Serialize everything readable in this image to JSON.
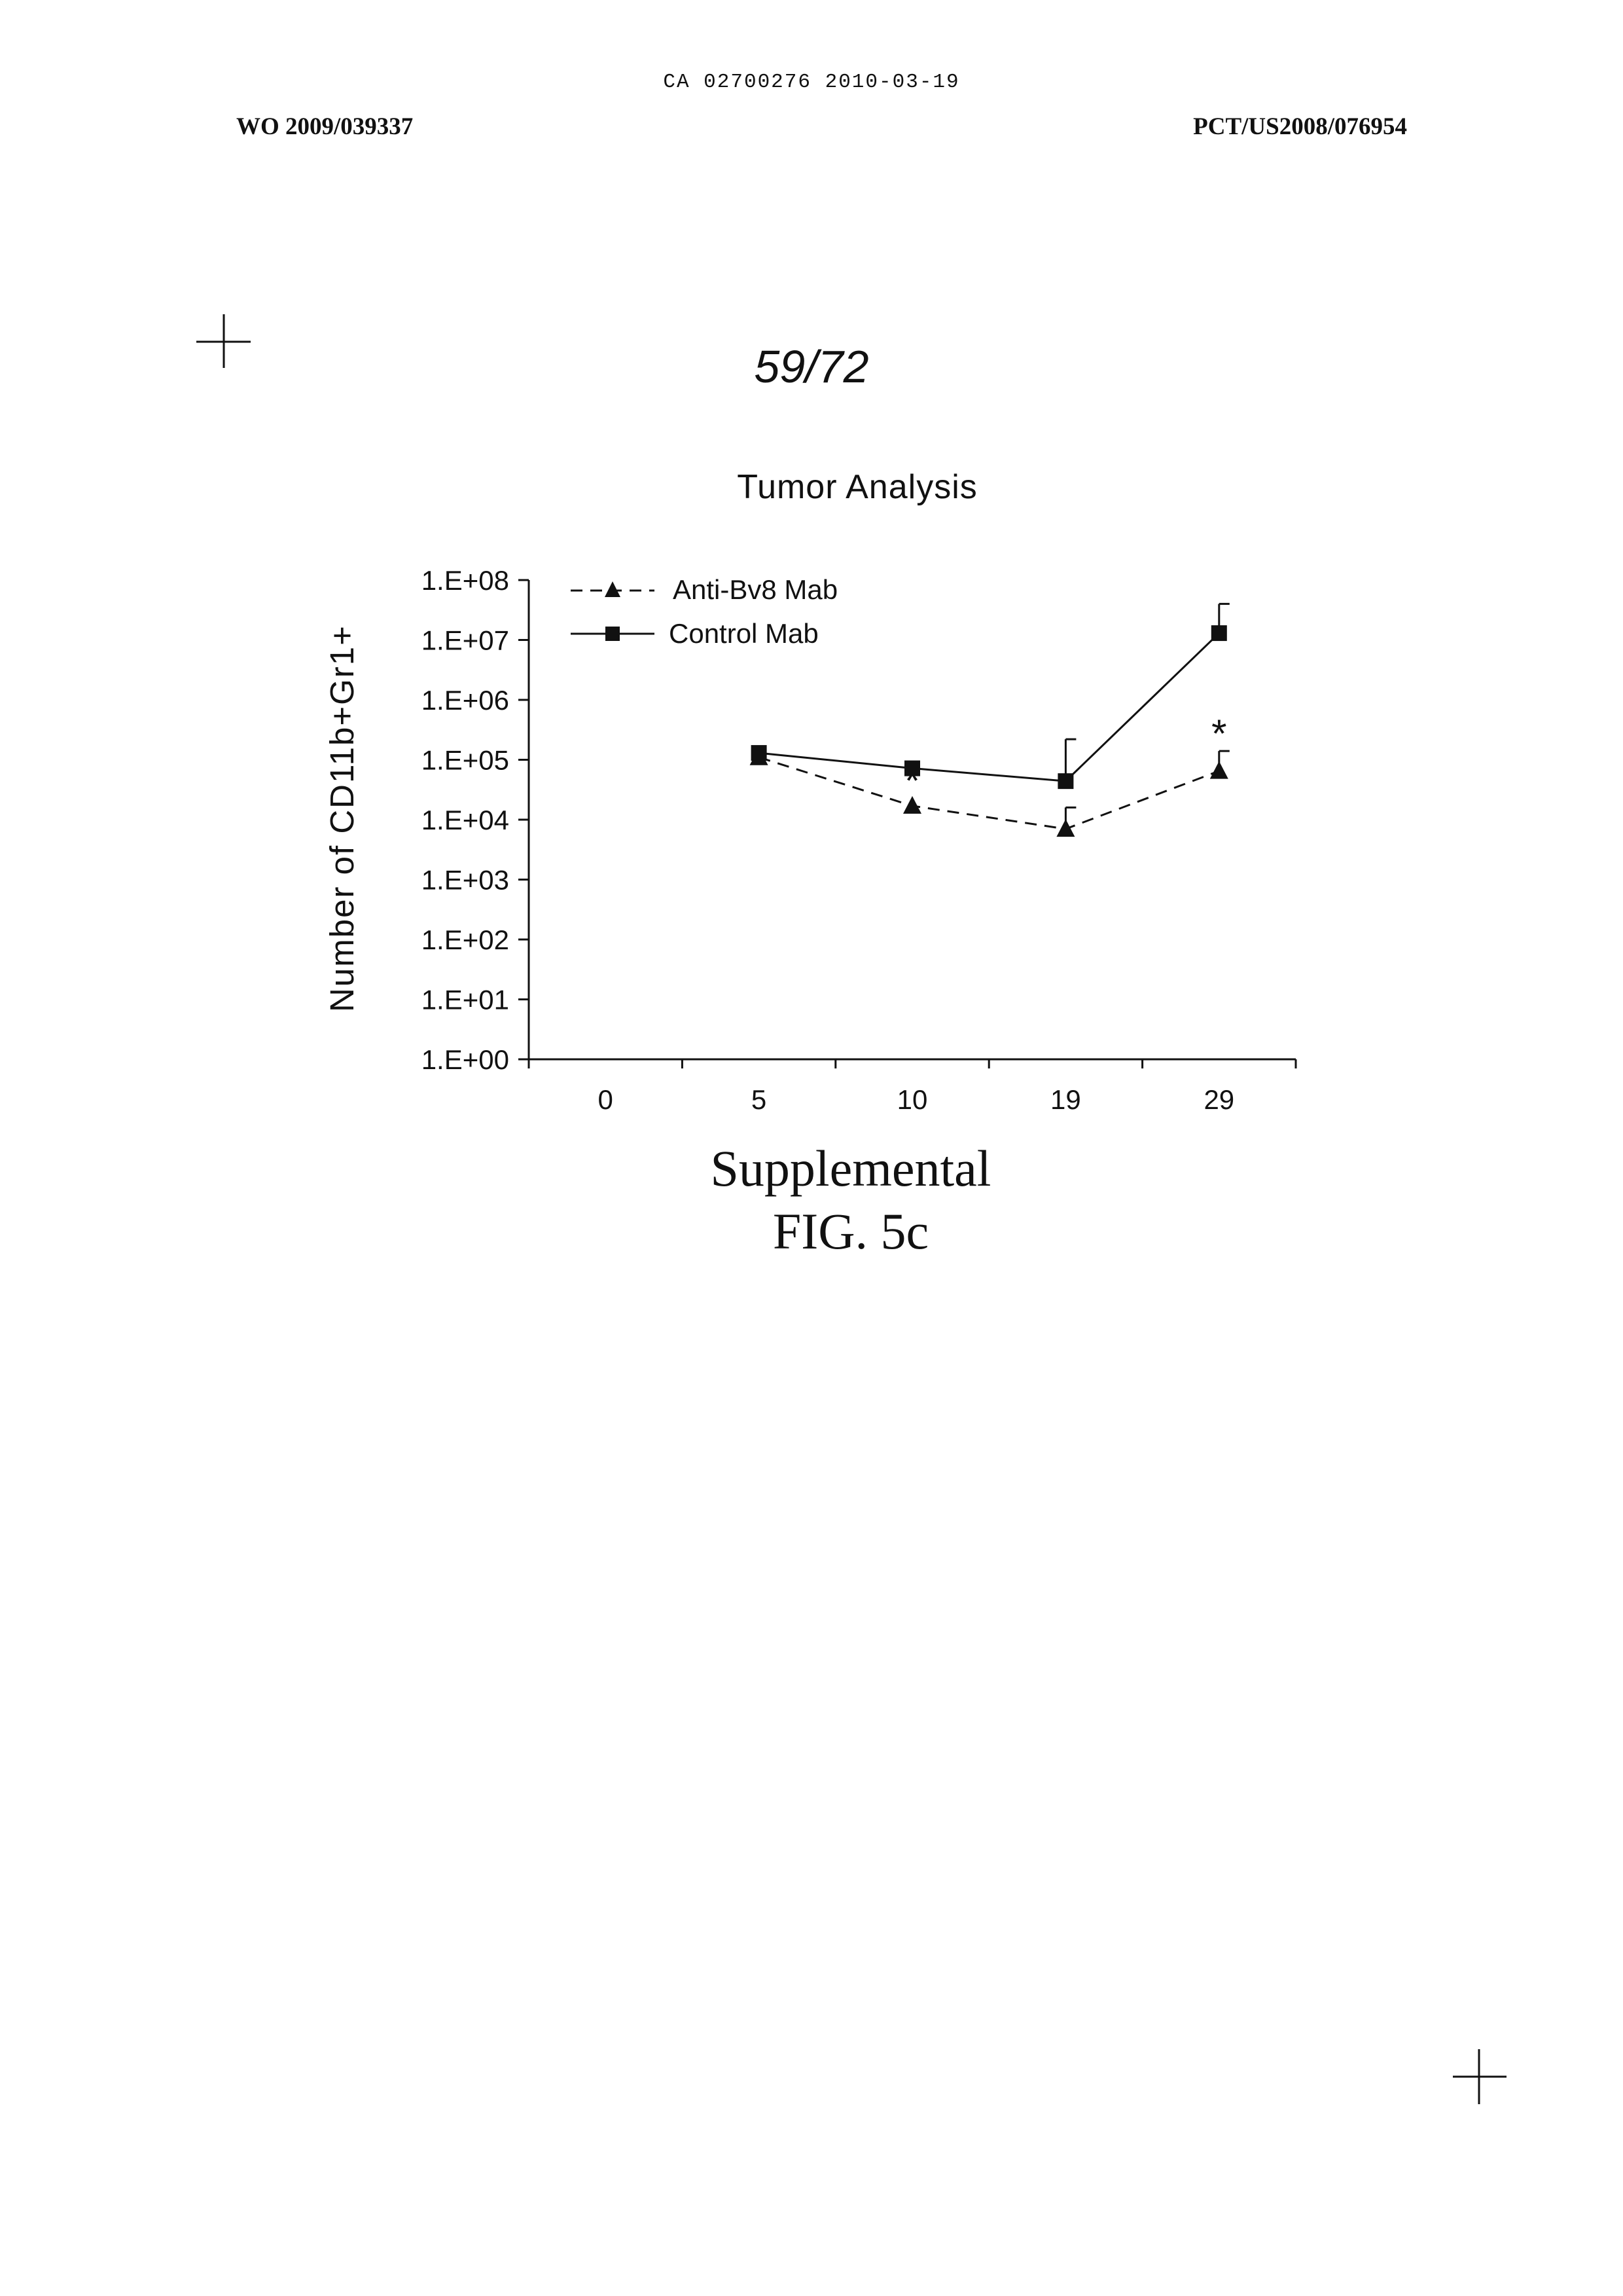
{
  "header": {
    "ca_line": "CA 02700276 2010-03-19",
    "left": "WO 2009/039337",
    "right": "PCT/US2008/076954"
  },
  "page_number": "59/72",
  "caption": {
    "line1": "Supplemental",
    "line2": "FIG. 5c"
  },
  "chart_data": {
    "type": "line",
    "title": "Tumor Analysis",
    "xlabel": "",
    "ylabel": "Number of CD11b+Gr1+",
    "categories": [
      "0",
      "5",
      "10",
      "19",
      "29"
    ],
    "y_scale": "log",
    "ylim": [
      1,
      100000000
    ],
    "y_ticks": [
      {
        "value": 1,
        "label": "1.E+00"
      },
      {
        "value": 10,
        "label": "1.E+01"
      },
      {
        "value": 100,
        "label": "1.E+02"
      },
      {
        "value": 1000,
        "label": "1.E+03"
      },
      {
        "value": 10000,
        "label": "1.E+04"
      },
      {
        "value": 100000,
        "label": "1.E+05"
      },
      {
        "value": 1000000,
        "label": "1.E+06"
      },
      {
        "value": 10000000,
        "label": "1.E+07"
      },
      {
        "value": 100000000,
        "label": "1.E+08"
      }
    ],
    "series": [
      {
        "name": "Anti-Bv8 Mab",
        "style": "dashed",
        "marker": "triangle",
        "points": [
          {
            "x": "5",
            "y": 110000
          },
          {
            "x": "10",
            "y": 17000,
            "significant": true
          },
          {
            "x": "19",
            "y": 7000,
            "error_upper": 16000
          },
          {
            "x": "29",
            "y": 65000,
            "error_upper": 140000,
            "significant": true
          }
        ]
      },
      {
        "name": "Control Mab",
        "style": "solid",
        "marker": "square",
        "points": [
          {
            "x": "5",
            "y": 130000
          },
          {
            "x": "10",
            "y": 72000
          },
          {
            "x": "19",
            "y": 44000,
            "error_upper": 220000
          },
          {
            "x": "29",
            "y": 13000000,
            "error_upper": 40000000
          }
        ]
      }
    ],
    "significance_marker": "*",
    "grid": false,
    "legend_position": "top-left",
    "colors": {
      "ink": "#111111"
    }
  }
}
